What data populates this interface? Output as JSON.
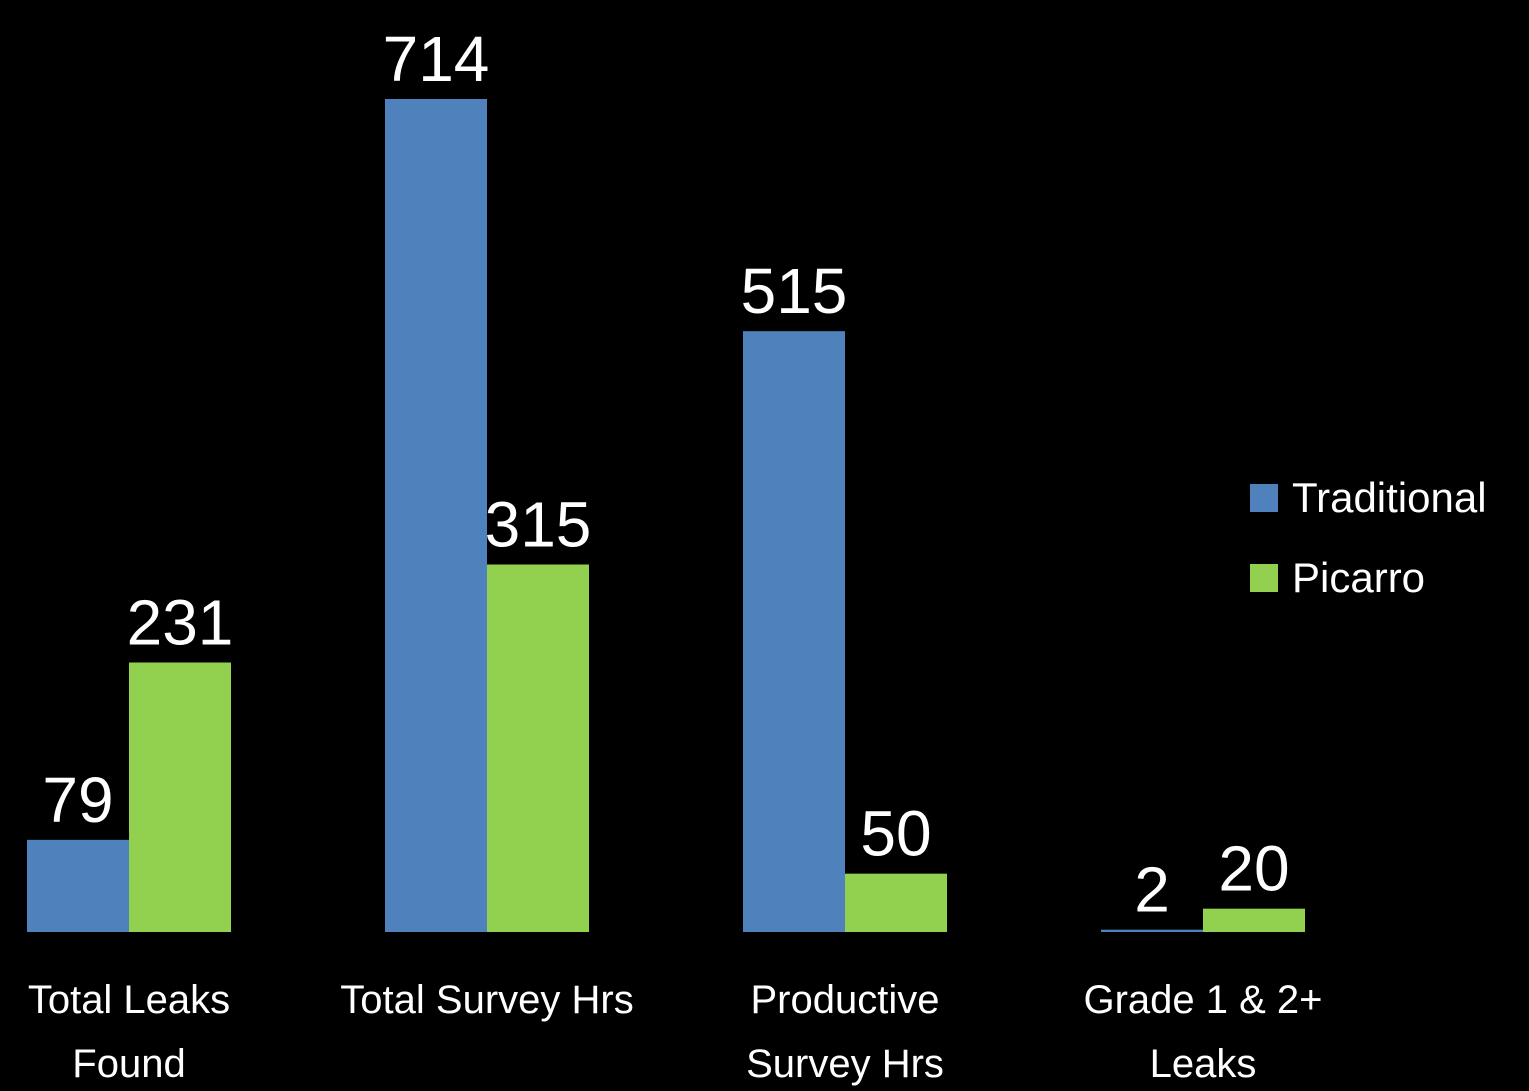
{
  "chart_data": {
    "type": "bar",
    "categories": [
      "Total Leaks Found",
      "Total Survey Hrs",
      "Productive Survey Hrs",
      "Grade 1 & 2+ Leaks"
    ],
    "series": [
      {
        "name": "Traditional",
        "color": "#4f81bd",
        "values": [
          79,
          714,
          515,
          2
        ]
      },
      {
        "name": "Picarro",
        "color": "#92d050",
        "values": [
          231,
          315,
          50,
          20
        ]
      }
    ],
    "legend": "right"
  }
}
